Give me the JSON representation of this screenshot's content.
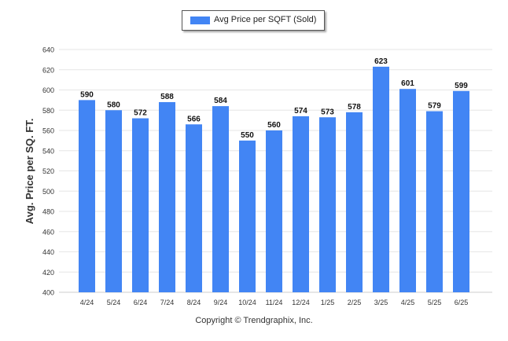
{
  "chart_data": {
    "type": "bar",
    "legend": "Avg Price per SQFT (Sold)",
    "legend_placement": "top-center",
    "ylabel": "Avg. Price per SQ. FT.",
    "xlabel": "",
    "ylim": [
      400,
      640
    ],
    "ytick_step": 20,
    "grid": true,
    "bar_color": "#4285f4",
    "categories": [
      "4/24",
      "5/24",
      "6/24",
      "7/24",
      "8/24",
      "9/24",
      "10/24",
      "11/24",
      "12/24",
      "1/25",
      "2/25",
      "3/25",
      "4/25",
      "5/25",
      "6/25"
    ],
    "values": [
      590,
      580,
      572,
      588,
      566,
      584,
      550,
      560,
      574,
      573,
      578,
      623,
      601,
      579,
      599
    ]
  },
  "footer": {
    "copyright": "Copyright © Trendgraphix, Inc."
  }
}
